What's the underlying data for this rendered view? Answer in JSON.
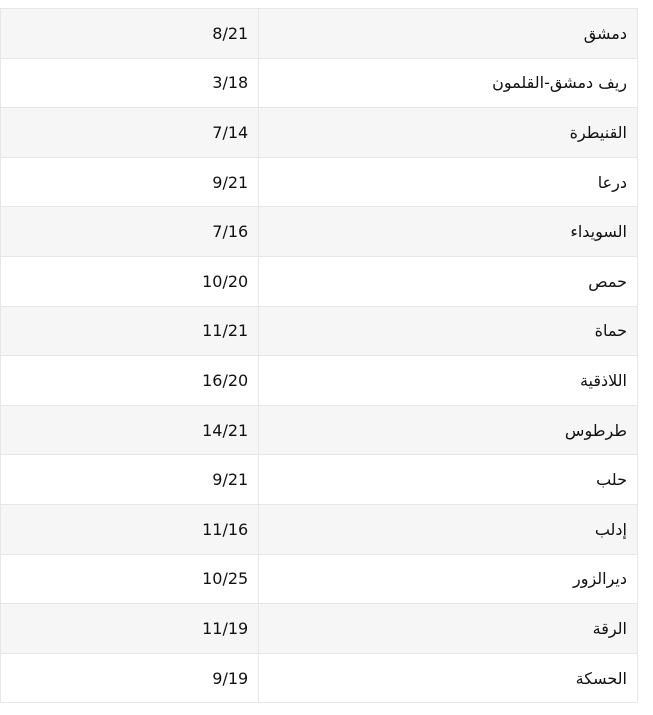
{
  "rows": [
    {
      "region": "دمشق",
      "score": "8/21"
    },
    {
      "region": "ريف دمشق-القلمون",
      "score": "3/18"
    },
    {
      "region": "القنيطرة",
      "score": "7/14"
    },
    {
      "region": "درعا",
      "score": "9/21"
    },
    {
      "region": "السويداء",
      "score": "7/16"
    },
    {
      "region": "حمص",
      "score": "10/20"
    },
    {
      "region": "حماة",
      "score": "11/21"
    },
    {
      "region": "اللاذقية",
      "score": "16/20"
    },
    {
      "region": "طرطوس",
      "score": "14/21"
    },
    {
      "region": "حلب",
      "score": "9/21"
    },
    {
      "region": "إدلب",
      "score": "11/16"
    },
    {
      "region": "ديرالزور",
      "score": "10/25"
    },
    {
      "region": "الرقة",
      "score": "11/19"
    },
    {
      "region": "الحسكة",
      "score": "9/19"
    }
  ]
}
